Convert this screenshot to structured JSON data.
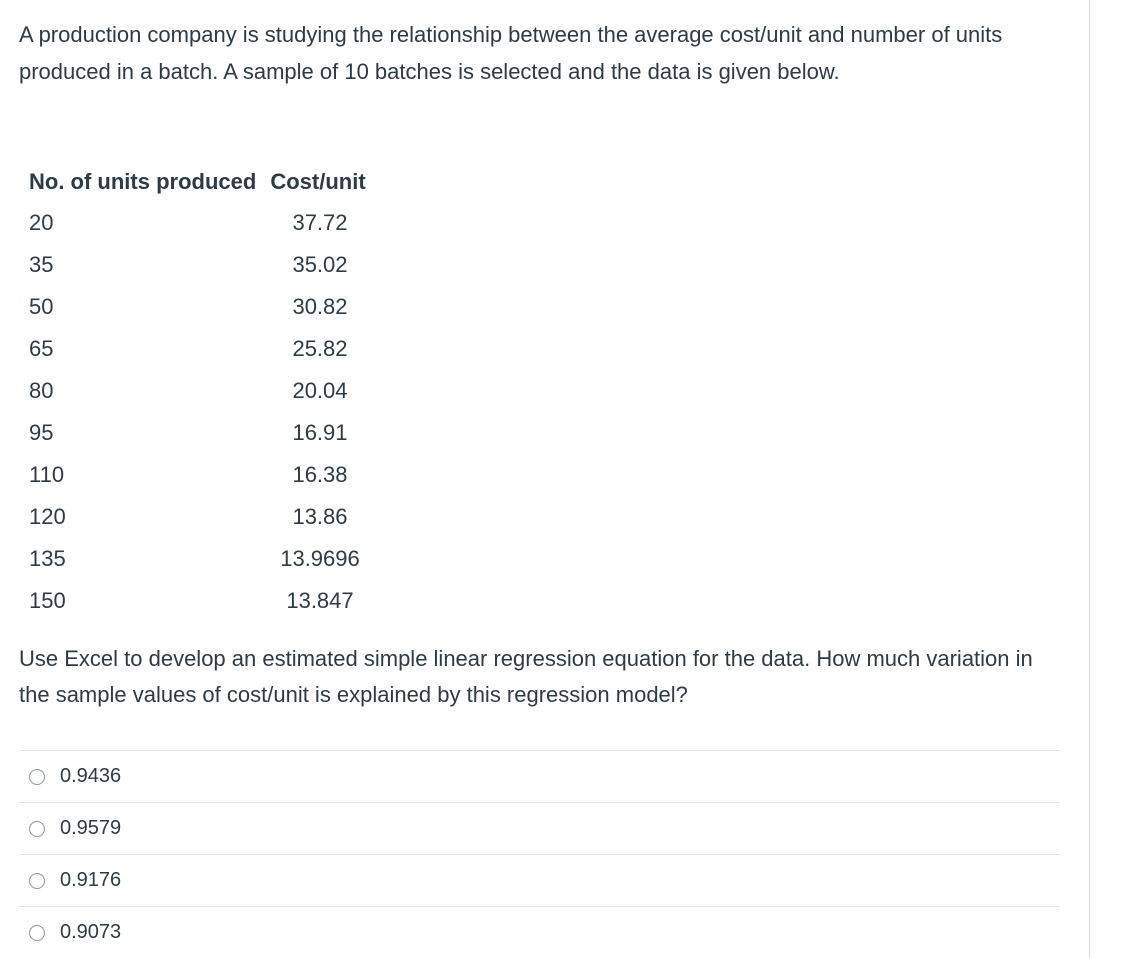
{
  "question": {
    "intro": "A production company is studying the relationship between the average cost/unit and number of units produced in a batch. A sample of 10 batches is selected and the data is given below.",
    "table": {
      "headers": [
        "No. of units produced",
        "Cost/unit"
      ],
      "rows": [
        [
          "20",
          "37.72"
        ],
        [
          "35",
          "35.02"
        ],
        [
          "50",
          "30.82"
        ],
        [
          "65",
          "25.82"
        ],
        [
          "80",
          "20.04"
        ],
        [
          "95",
          "16.91"
        ],
        [
          "110",
          "16.38"
        ],
        [
          "120",
          "13.86"
        ],
        [
          "135",
          "13.9696"
        ],
        [
          "150",
          "13.847"
        ]
      ]
    },
    "prompt": "Use Excel to develop an estimated simple linear regression equation for the data. How much variation in the sample values of cost/unit is explained by this regression model?"
  },
  "answers": [
    {
      "label": "0.9436",
      "selected": false
    },
    {
      "label": "0.9579",
      "selected": false
    },
    {
      "label": "0.9176",
      "selected": false
    },
    {
      "label": "0.9073",
      "selected": false
    }
  ]
}
